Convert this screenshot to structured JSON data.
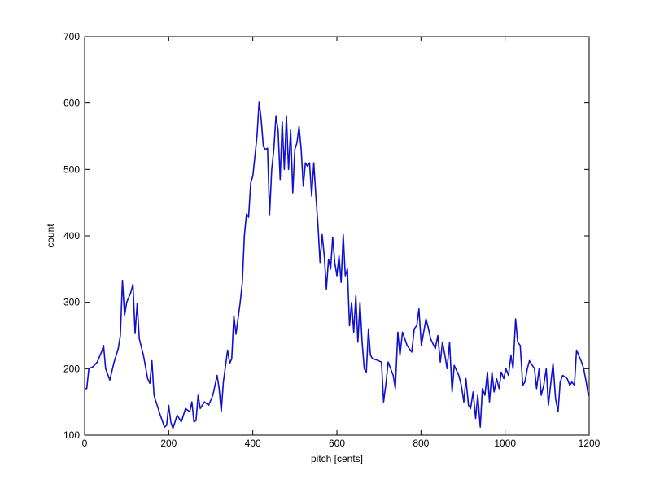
{
  "chart_data": {
    "type": "line",
    "xlabel": "pitch [cents]",
    "ylabel": "count",
    "color": "#1010d0",
    "x": [
      0,
      5,
      10,
      20,
      30,
      40,
      45,
      50,
      60,
      70,
      80,
      85,
      90,
      95,
      100,
      110,
      115,
      120,
      125,
      130,
      140,
      150,
      155,
      160,
      165,
      170,
      180,
      190,
      195,
      200,
      205,
      210,
      220,
      230,
      240,
      250,
      255,
      260,
      265,
      270,
      275,
      285,
      295,
      305,
      315,
      320,
      325,
      330,
      340,
      345,
      350,
      355,
      360,
      370,
      375,
      380,
      385,
      390,
      395,
      400,
      405,
      410,
      415,
      420,
      425,
      430,
      435,
      440,
      445,
      450,
      455,
      460,
      465,
      470,
      475,
      480,
      485,
      490,
      495,
      500,
      505,
      510,
      515,
      520,
      525,
      530,
      535,
      540,
      545,
      550,
      555,
      560,
      565,
      570,
      575,
      580,
      585,
      590,
      595,
      600,
      605,
      610,
      615,
      620,
      625,
      630,
      635,
      640,
      645,
      650,
      655,
      660,
      665,
      670,
      675,
      680,
      685,
      695,
      706,
      711,
      717,
      722,
      734,
      739,
      745,
      750,
      756,
      767,
      778,
      784,
      790,
      795,
      801,
      812,
      818,
      823,
      834,
      840,
      846,
      851,
      857,
      862,
      868,
      874,
      879,
      890,
      896,
      902,
      907,
      913,
      918,
      924,
      930,
      935,
      941,
      946,
      952,
      958,
      963,
      969,
      974,
      980,
      986,
      991,
      997,
      1002,
      1008,
      1014,
      1019,
      1025,
      1030,
      1036,
      1042,
      1047,
      1053,
      1058,
      1070,
      1075,
      1081,
      1086,
      1092,
      1098,
      1103,
      1109,
      1114,
      1120,
      1126,
      1131,
      1137,
      1148,
      1154,
      1159,
      1165,
      1170,
      1182,
      1187,
      1193,
      1198,
      1200
    ],
    "values": [
      170,
      170,
      200,
      203,
      210,
      225,
      235,
      200,
      183,
      210,
      230,
      250,
      333,
      280,
      300,
      315,
      327,
      253,
      298,
      245,
      220,
      185,
      178,
      212,
      160,
      150,
      130,
      112,
      115,
      145,
      120,
      110,
      130,
      120,
      140,
      135,
      150,
      120,
      122,
      160,
      140,
      150,
      145,
      160,
      190,
      170,
      135,
      180,
      228,
      208,
      215,
      280,
      252,
      300,
      330,
      400,
      433,
      428,
      480,
      490,
      520,
      550,
      602,
      575,
      535,
      530,
      532,
      432,
      500,
      530,
      580,
      560,
      485,
      572,
      500,
      580,
      500,
      560,
      465,
      530,
      540,
      565,
      530,
      475,
      510,
      505,
      510,
      460,
      510,
      460,
      415,
      360,
      402,
      370,
      320,
      365,
      350,
      398,
      360,
      340,
      370,
      330,
      402,
      340,
      350,
      265,
      300,
      255,
      310,
      240,
      300,
      240,
      200,
      195,
      260,
      220,
      215,
      213,
      210,
      150,
      180,
      210,
      190,
      170,
      255,
      220,
      255,
      235,
      225,
      260,
      265,
      290,
      235,
      275,
      260,
      245,
      230,
      250,
      210,
      240,
      220,
      200,
      240,
      165,
      205,
      190,
      175,
      150,
      185,
      145,
      140,
      165,
      125,
      160,
      112,
      170,
      160,
      195,
      150,
      195,
      165,
      185,
      170,
      195,
      185,
      200,
      190,
      220,
      200,
      275,
      240,
      235,
      175,
      180,
      200,
      212,
      200,
      170,
      200,
      160,
      175,
      200,
      145,
      180,
      208,
      155,
      135,
      180,
      190,
      185,
      175,
      180,
      175,
      228,
      210,
      200,
      180,
      160,
      160
    ],
    "xlim": [
      0,
      1200
    ],
    "xticks": [
      0,
      200,
      400,
      600,
      800,
      1000,
      1200
    ],
    "ylim": [
      100,
      700
    ],
    "yticks": [
      100,
      200,
      300,
      400,
      500,
      600,
      700
    ]
  }
}
